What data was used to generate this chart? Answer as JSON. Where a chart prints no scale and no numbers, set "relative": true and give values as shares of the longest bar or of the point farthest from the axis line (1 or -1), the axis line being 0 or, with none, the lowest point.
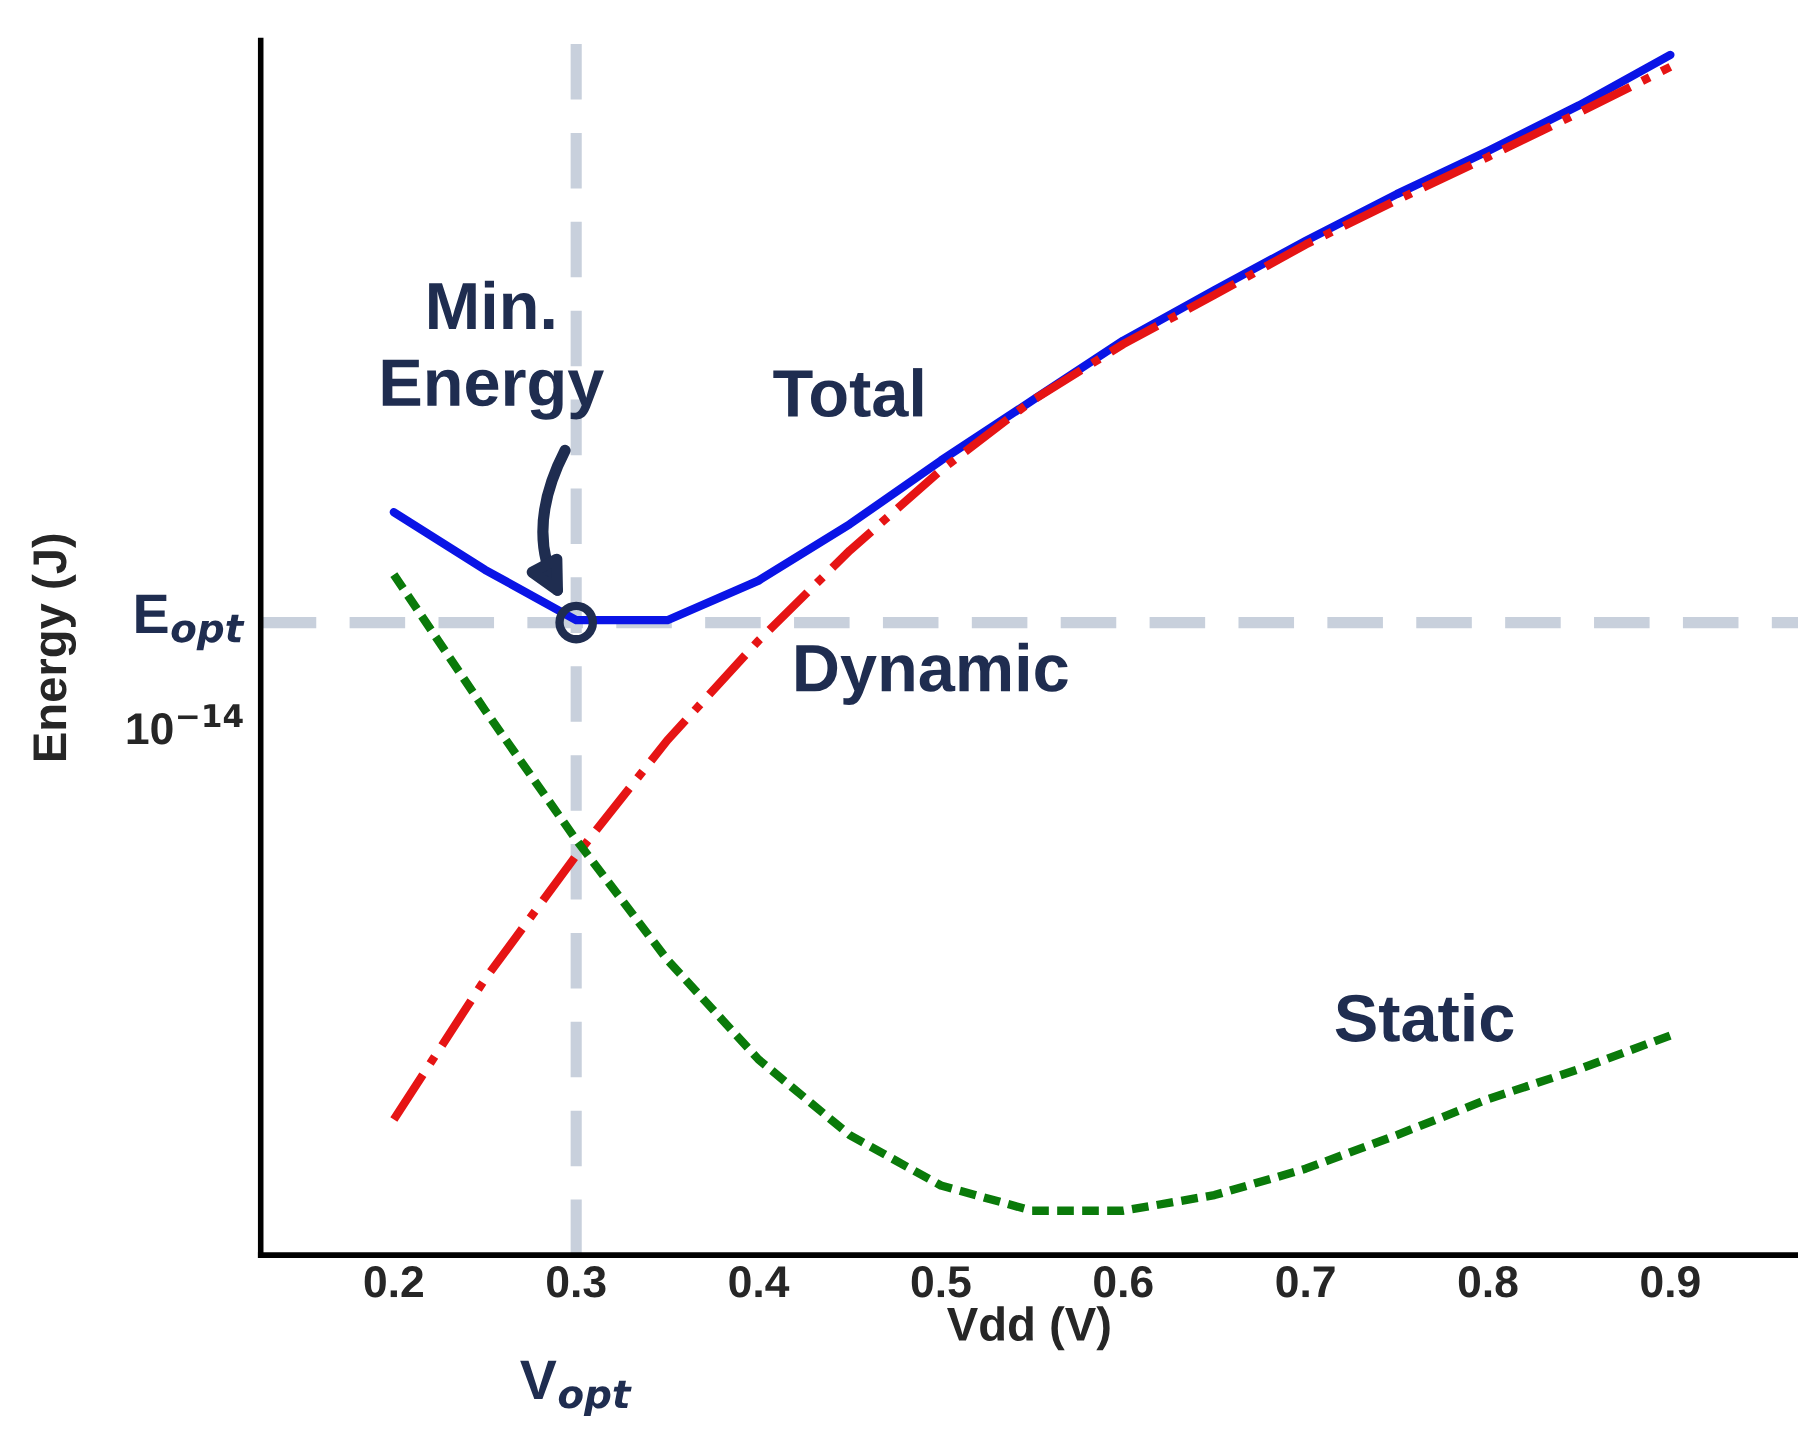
{
  "chart_data": {
    "type": "line",
    "relative": true,
    "xlabel": "Vdd (V)",
    "ylabel": "Energy (J)",
    "x": [
      0.2,
      0.25,
      0.3,
      0.35,
      0.4,
      0.45,
      0.5,
      0.55,
      0.6,
      0.65,
      0.7,
      0.75,
      0.8,
      0.85,
      0.9
    ],
    "xlim": [
      0.127,
      0.97
    ],
    "xticks": [
      0.2,
      0.3,
      0.4,
      0.5,
      0.6,
      0.7,
      0.8,
      0.9
    ],
    "series": [
      {
        "name": "Total",
        "color": "#0a14e6",
        "line_style": "solid",
        "values": [
          0.619,
          0.571,
          0.529,
          0.529,
          0.562,
          0.609,
          0.662,
          0.712,
          0.762,
          0.804,
          0.845,
          0.884,
          0.92,
          0.958,
          1
        ]
      },
      {
        "name": "Dynamic",
        "color": "#e61414",
        "line_style": "dashed",
        "values": [
          0.113,
          0.23,
          0.333,
          0.429,
          0.512,
          0.587,
          0.654,
          0.712,
          0.759,
          0.8,
          0.842,
          0.879,
          0.915,
          0.952,
          0.99
        ]
      },
      {
        "name": "Static",
        "color": "#0a7a0a",
        "line_style": "dotted",
        "values": [
          0.567,
          0.454,
          0.346,
          0.246,
          0.163,
          0.1,
          0.058,
          0.037,
          0.037,
          0.05,
          0.072,
          0.1,
          0.13,
          0.155,
          0.183
        ]
      },
      {
        "type": "scatter",
        "color": "#1f2d50",
        "marker": "circle",
        "x": [
          0.3
        ],
        "values": [
          0.527
        ]
      }
    ],
    "ref_lines": [
      {
        "axis": "x",
        "value": 0.3,
        "label": "V$_{opt}$",
        "color": "#c8d0dc",
        "line_style": "dashed"
      },
      {
        "axis": "y",
        "value": 0.527,
        "label": "E$_{opt}$",
        "color": "#c8d0dc",
        "line_style": "dashed"
      }
    ],
    "annotations": [
      "Min.\nEnergy",
      "10$^{−14}$"
    ],
    "grid": false,
    "legend": false
  }
}
